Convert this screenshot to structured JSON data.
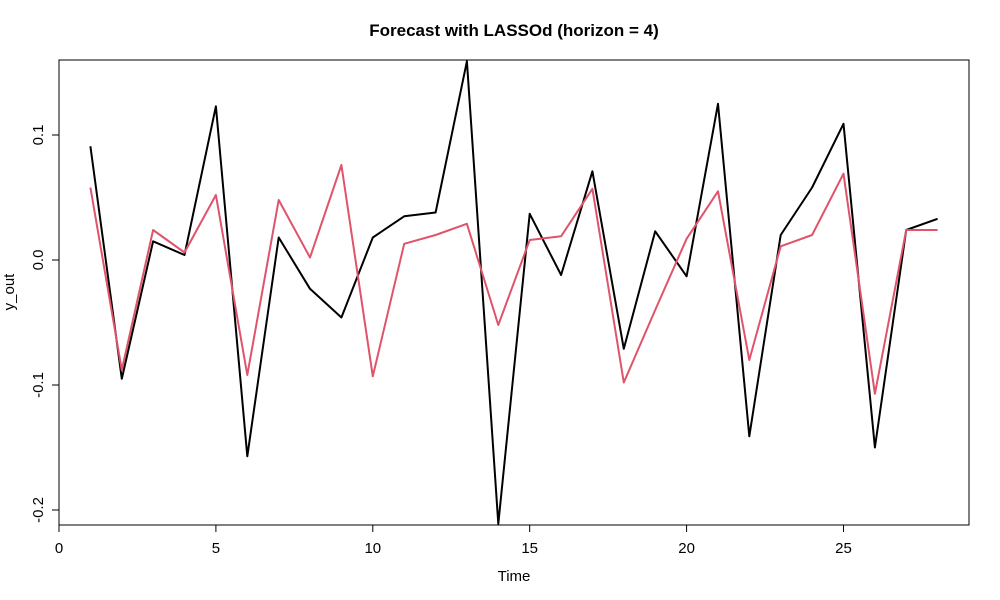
{
  "chart_data": {
    "type": "line",
    "title": "Forecast with LASSOd (horizon = 4)",
    "xlabel": "Time",
    "ylabel": "y_out",
    "xlim": [
      0,
      29
    ],
    "ylim": [
      -0.212,
      0.16
    ],
    "x_ticks": [
      0,
      5,
      10,
      15,
      20,
      25
    ],
    "y_ticks": [
      -0.2,
      -0.1,
      0.0,
      0.1
    ],
    "y_tick_labels": [
      "-0.2",
      "-0.1",
      "0.0",
      "0.1"
    ],
    "grid": false,
    "x": [
      1,
      2,
      3,
      4,
      5,
      6,
      7,
      8,
      9,
      10,
      11,
      12,
      13,
      14,
      15,
      16,
      17,
      18,
      19,
      20,
      21,
      22,
      23,
      24,
      25,
      26,
      27,
      28
    ],
    "series": [
      {
        "color": "#000000",
        "values": [
          0.091,
          -0.095,
          0.015,
          0.004,
          0.123,
          -0.157,
          0.018,
          -0.023,
          -0.046,
          0.018,
          0.035,
          0.038,
          0.159,
          -0.211,
          0.037,
          -0.012,
          0.071,
          -0.071,
          0.023,
          -0.013,
          0.125,
          -0.141,
          0.02,
          0.058,
          0.109,
          -0.15,
          0.024,
          0.033
        ]
      },
      {
        "color": "#df536b",
        "values": [
          0.058,
          -0.088,
          0.024,
          0.006,
          0.052,
          -0.092,
          0.048,
          0.002,
          0.076,
          -0.093,
          0.013,
          0.02,
          0.029,
          -0.052,
          0.016,
          0.019,
          0.057,
          -0.098,
          -0.04,
          0.017,
          0.055,
          -0.08,
          0.011,
          0.02,
          0.069,
          -0.107,
          0.024,
          0.024
        ]
      }
    ]
  }
}
